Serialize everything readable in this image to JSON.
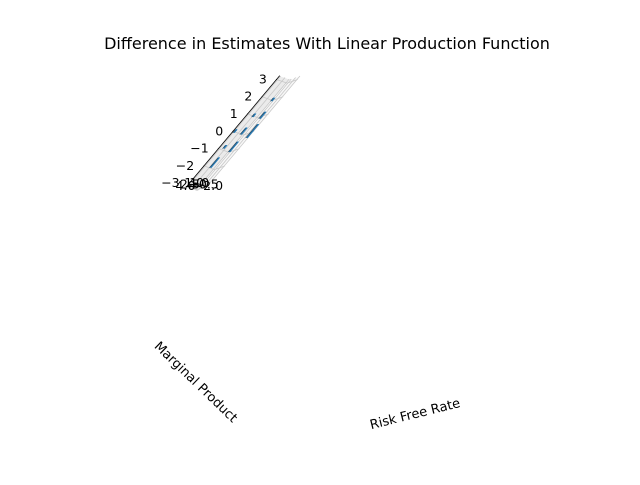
{
  "chart_data": {
    "type": "bar3d",
    "title": "Difference in Estimates With Linear Production Function",
    "xlabel": "Risk Free Rate",
    "ylabel": "Marginal Product",
    "zlabel": "",
    "x_ticks": [
      1.0,
      -0.5,
      -2.0
    ],
    "x_tick_labels": [
      "1.0",
      "−0.5",
      "−2.0"
    ],
    "y_ticks": [
      1.0,
      2.5,
      4.0
    ],
    "y_tick_labels": [
      "1.0",
      "2.5",
      "4.0"
    ],
    "z_ticks": [
      -3,
      -2,
      -1,
      0,
      1,
      2,
      3
    ],
    "z_tick_labels": [
      "−3",
      "−2",
      "−1",
      "0",
      "1",
      "2",
      "3"
    ],
    "zlim": [
      -3,
      3
    ],
    "bars": [
      {
        "x": 1.0,
        "y": 4.0,
        "bottom": -0.1,
        "top": 0.1
      },
      {
        "x": 1.0,
        "y": 2.5,
        "bottom": -1.1,
        "top": -0.9
      },
      {
        "x": 1.0,
        "y": 1.0,
        "bottom": -2.3,
        "top": -1.7
      },
      {
        "x": -0.5,
        "y": 4.0,
        "bottom": 0.9,
        "top": 1.1
      },
      {
        "x": -0.5,
        "y": 2.5,
        "bottom": -0.2,
        "top": 0.2
      },
      {
        "x": -0.5,
        "y": 1.0,
        "bottom": -1.3,
        "top": -0.7
      },
      {
        "x": -2.0,
        "y": 4.0,
        "bottom": 1.9,
        "top": 2.1
      },
      {
        "x": -2.0,
        "y": 2.5,
        "bottom": 0.8,
        "top": 1.2
      },
      {
        "x": -2.0,
        "y": 1.0,
        "bottom": -0.4,
        "top": 0.4
      }
    ],
    "bar_color": "#1f77b4",
    "grid": true
  }
}
